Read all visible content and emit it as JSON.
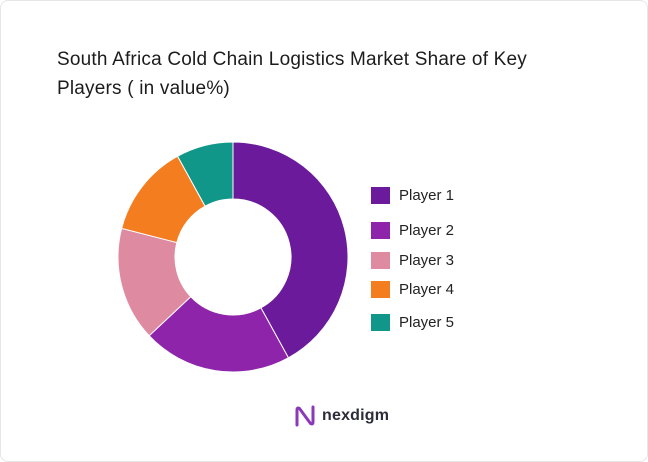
{
  "brand": {
    "name": "nexdigm",
    "logo_icon": "nexdigm-logo-icon",
    "logo_color": "#8a3ab9"
  },
  "chart_data": {
    "type": "pie",
    "variant": "donut",
    "title": "South Africa Cold Chain Logistics Market Share of Key Players ( in value%)",
    "title_lines": [
      "South Africa Cold Chain Logistics Market Share of Key",
      "Players ( in value%)"
    ],
    "legend_position": "right",
    "categories": [
      "Player 1",
      "Player 2",
      "Player 3",
      "Player 4",
      "Player 5"
    ],
    "values": [
      42,
      21,
      16,
      13,
      8
    ],
    "colors": [
      "#6a1a9a",
      "#8e24aa",
      "#de8aa0",
      "#f47d20",
      "#11968a"
    ]
  }
}
